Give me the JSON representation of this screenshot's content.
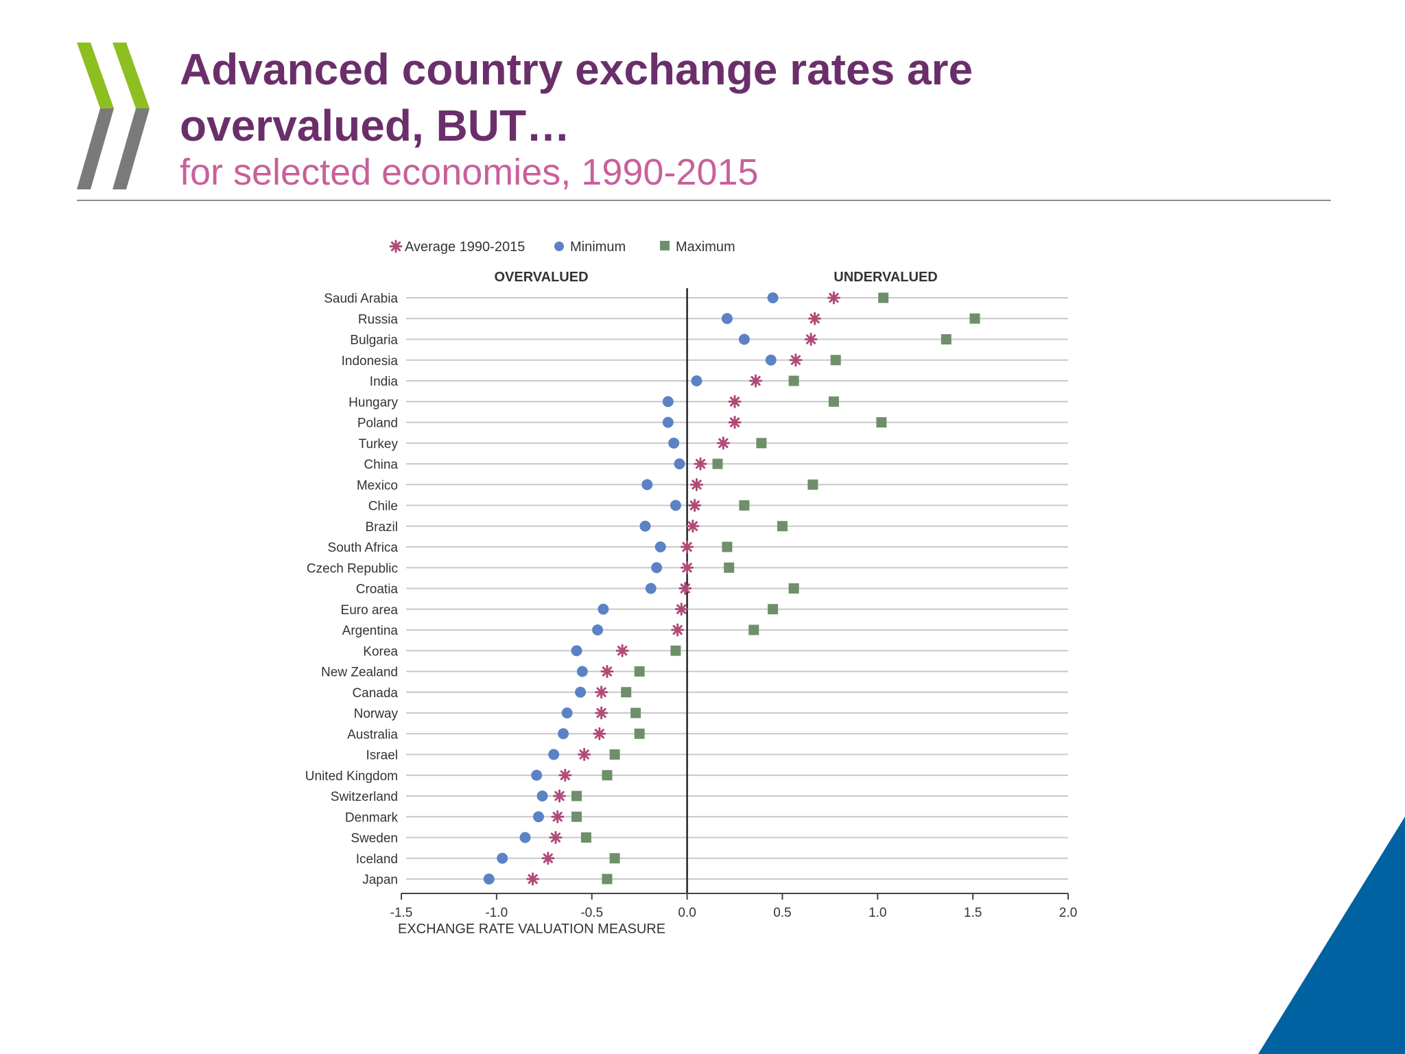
{
  "slide": {
    "title_line1": "Advanced country exchange rates are",
    "title_line2": "overvalued, BUT…",
    "subtitle": "for selected economies, 1990-2015"
  },
  "colors": {
    "title": "#6a2f6a",
    "subtitle": "#c8609a",
    "average": "#b04a78",
    "minimum": "#5b82c4",
    "maximum": "#6e8f6a",
    "logo_green": "#8cbf1f",
    "logo_gray": "#7a7a7a",
    "corner_blue": "#0062a0"
  },
  "chart_data": {
    "type": "scatter",
    "xlabel": "EXCHANGE RATE VALUATION MEASURE",
    "xlim": [
      -1.5,
      2.0
    ],
    "xticks": [
      "-1.5",
      "-1.0",
      "-0.5",
      "0.0",
      "0.5",
      "1.0",
      "1.5",
      "2.0"
    ],
    "region_labels": {
      "left": "OVERVALUED",
      "right": "UNDERVALUED"
    },
    "legend_position": "top-left",
    "grid": "horizontal",
    "categories": [
      "Saudi Arabia",
      "Russia",
      "Bulgaria",
      "Indonesia",
      "India",
      "Hungary",
      "Poland",
      "Turkey",
      "China",
      "Mexico",
      "Chile",
      "Brazil",
      "South Africa",
      "Czech Republic",
      "Croatia",
      "Euro area",
      "Argentina",
      "Korea",
      "New Zealand",
      "Canada",
      "Norway",
      "Australia",
      "Israel",
      "United Kingdom",
      "Switzerland",
      "Denmark",
      "Sweden",
      "Iceland",
      "Japan"
    ],
    "series": [
      {
        "name": "Average 1990-2015",
        "marker": "asterisk",
        "values": [
          0.77,
          0.67,
          0.65,
          0.57,
          0.36,
          0.25,
          0.25,
          0.19,
          0.07,
          0.05,
          0.04,
          0.03,
          0.0,
          0.0,
          -0.01,
          -0.03,
          -0.05,
          -0.34,
          -0.42,
          -0.45,
          -0.45,
          -0.46,
          -0.54,
          -0.64,
          -0.67,
          -0.68,
          -0.69,
          -0.73,
          -0.81
        ]
      },
      {
        "name": "Minimum",
        "marker": "circle",
        "values": [
          0.45,
          0.21,
          0.3,
          0.44,
          0.05,
          -0.1,
          -0.1,
          -0.07,
          -0.04,
          -0.21,
          -0.06,
          -0.22,
          -0.14,
          -0.16,
          -0.19,
          -0.44,
          -0.47,
          -0.58,
          -0.55,
          -0.56,
          -0.63,
          -0.65,
          -0.7,
          -0.79,
          -0.76,
          -0.78,
          -0.85,
          -0.97,
          -1.04
        ]
      },
      {
        "name": "Maximum",
        "marker": "square",
        "values": [
          1.03,
          1.51,
          1.36,
          0.78,
          0.56,
          0.77,
          1.02,
          0.39,
          0.16,
          0.66,
          0.3,
          0.5,
          0.21,
          0.22,
          0.56,
          0.45,
          0.35,
          -0.06,
          -0.25,
          -0.32,
          -0.27,
          -0.25,
          -0.38,
          -0.42,
          -0.58,
          -0.58,
          -0.53,
          -0.38,
          -0.42
        ]
      }
    ]
  }
}
